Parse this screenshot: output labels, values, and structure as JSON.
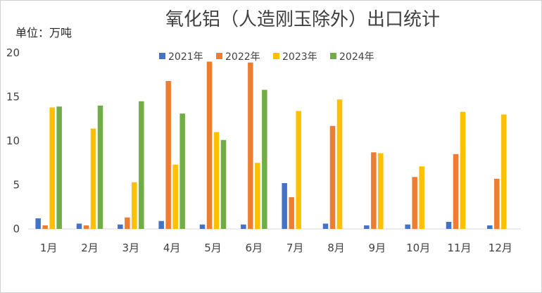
{
  "chart_data": {
    "type": "bar",
    "title": "氧化铝（人造刚玉除外）出口统计",
    "unit_label": "单位：万吨",
    "categories": [
      "1月",
      "2月",
      "3月",
      "4月",
      "5月",
      "6月",
      "7月",
      "8月",
      "9月",
      "10月",
      "11月",
      "12月"
    ],
    "ylim": [
      0,
      20
    ],
    "yticks": [
      0,
      5,
      10,
      15,
      20
    ],
    "grid": false,
    "legend_position": "top-center",
    "series": [
      {
        "name": "2021年",
        "color": "#4472C4",
        "values": [
          1.2,
          0.6,
          0.5,
          0.9,
          0.5,
          0.5,
          5.2,
          0.6,
          0.4,
          0.5,
          0.8,
          0.4
        ]
      },
      {
        "name": "2022年",
        "color": "#ED7D31",
        "values": [
          0.4,
          0.4,
          1.3,
          16.8,
          19.0,
          18.9,
          3.6,
          11.7,
          8.7,
          5.9,
          8.5,
          5.7
        ]
      },
      {
        "name": "2023年",
        "color": "#FFC000",
        "values": [
          13.8,
          11.4,
          5.3,
          7.3,
          11.0,
          7.5,
          13.4,
          14.7,
          8.6,
          7.1,
          13.3,
          13.0
        ]
      },
      {
        "name": "2024年",
        "color": "#70AD47",
        "values": [
          13.9,
          14.0,
          14.5,
          13.1,
          10.1,
          15.8,
          null,
          null,
          null,
          null,
          null,
          null
        ]
      }
    ]
  }
}
